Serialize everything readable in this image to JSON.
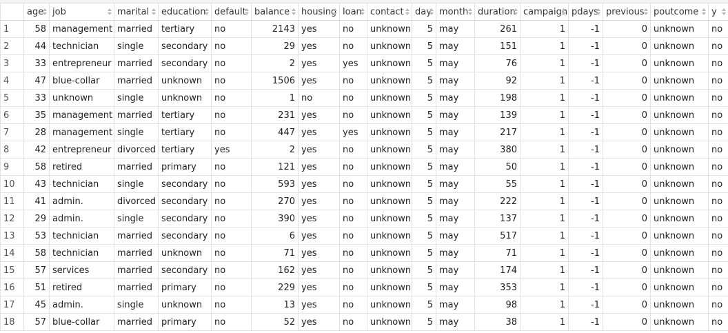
{
  "table": {
    "columns": [
      "age",
      "job",
      "marital",
      "education",
      "default",
      "balance",
      "housing",
      "loan",
      "contact",
      "day",
      "month",
      "duration",
      "campaign",
      "pdays",
      "previous",
      "poutcome",
      "y"
    ],
    "rows": [
      {
        "index": "1",
        "age": "58",
        "job": "management",
        "marital": "married",
        "education": "tertiary",
        "default": "no",
        "balance": "2143",
        "housing": "yes",
        "loan": "no",
        "contact": "unknown",
        "day": "5",
        "month": "may",
        "duration": "261",
        "campaign": "1",
        "pdays": "-1",
        "previous": "0",
        "poutcome": "unknown",
        "y": "no"
      },
      {
        "index": "2",
        "age": "44",
        "job": "technician",
        "marital": "single",
        "education": "secondary",
        "default": "no",
        "balance": "29",
        "housing": "yes",
        "loan": "no",
        "contact": "unknown",
        "day": "5",
        "month": "may",
        "duration": "151",
        "campaign": "1",
        "pdays": "-1",
        "previous": "0",
        "poutcome": "unknown",
        "y": "no"
      },
      {
        "index": "3",
        "age": "33",
        "job": "entrepreneur",
        "marital": "married",
        "education": "secondary",
        "default": "no",
        "balance": "2",
        "housing": "yes",
        "loan": "yes",
        "contact": "unknown",
        "day": "5",
        "month": "may",
        "duration": "76",
        "campaign": "1",
        "pdays": "-1",
        "previous": "0",
        "poutcome": "unknown",
        "y": "no"
      },
      {
        "index": "4",
        "age": "47",
        "job": "blue-collar",
        "marital": "married",
        "education": "unknown",
        "default": "no",
        "balance": "1506",
        "housing": "yes",
        "loan": "no",
        "contact": "unknown",
        "day": "5",
        "month": "may",
        "duration": "92",
        "campaign": "1",
        "pdays": "-1",
        "previous": "0",
        "poutcome": "unknown",
        "y": "no"
      },
      {
        "index": "5",
        "age": "33",
        "job": "unknown",
        "marital": "single",
        "education": "unknown",
        "default": "no",
        "balance": "1",
        "housing": "no",
        "loan": "no",
        "contact": "unknown",
        "day": "5",
        "month": "may",
        "duration": "198",
        "campaign": "1",
        "pdays": "-1",
        "previous": "0",
        "poutcome": "unknown",
        "y": "no"
      },
      {
        "index": "6",
        "age": "35",
        "job": "management",
        "marital": "married",
        "education": "tertiary",
        "default": "no",
        "balance": "231",
        "housing": "yes",
        "loan": "no",
        "contact": "unknown",
        "day": "5",
        "month": "may",
        "duration": "139",
        "campaign": "1",
        "pdays": "-1",
        "previous": "0",
        "poutcome": "unknown",
        "y": "no"
      },
      {
        "index": "7",
        "age": "28",
        "job": "management",
        "marital": "single",
        "education": "tertiary",
        "default": "no",
        "balance": "447",
        "housing": "yes",
        "loan": "yes",
        "contact": "unknown",
        "day": "5",
        "month": "may",
        "duration": "217",
        "campaign": "1",
        "pdays": "-1",
        "previous": "0",
        "poutcome": "unknown",
        "y": "no"
      },
      {
        "index": "8",
        "age": "42",
        "job": "entrepreneur",
        "marital": "divorced",
        "education": "tertiary",
        "default": "yes",
        "balance": "2",
        "housing": "yes",
        "loan": "no",
        "contact": "unknown",
        "day": "5",
        "month": "may",
        "duration": "380",
        "campaign": "1",
        "pdays": "-1",
        "previous": "0",
        "poutcome": "unknown",
        "y": "no"
      },
      {
        "index": "9",
        "age": "58",
        "job": "retired",
        "marital": "married",
        "education": "primary",
        "default": "no",
        "balance": "121",
        "housing": "yes",
        "loan": "no",
        "contact": "unknown",
        "day": "5",
        "month": "may",
        "duration": "50",
        "campaign": "1",
        "pdays": "-1",
        "previous": "0",
        "poutcome": "unknown",
        "y": "no"
      },
      {
        "index": "10",
        "age": "43",
        "job": "technician",
        "marital": "single",
        "education": "secondary",
        "default": "no",
        "balance": "593",
        "housing": "yes",
        "loan": "no",
        "contact": "unknown",
        "day": "5",
        "month": "may",
        "duration": "55",
        "campaign": "1",
        "pdays": "-1",
        "previous": "0",
        "poutcome": "unknown",
        "y": "no"
      },
      {
        "index": "11",
        "age": "41",
        "job": "admin.",
        "marital": "divorced",
        "education": "secondary",
        "default": "no",
        "balance": "270",
        "housing": "yes",
        "loan": "no",
        "contact": "unknown",
        "day": "5",
        "month": "may",
        "duration": "222",
        "campaign": "1",
        "pdays": "-1",
        "previous": "0",
        "poutcome": "unknown",
        "y": "no"
      },
      {
        "index": "12",
        "age": "29",
        "job": "admin.",
        "marital": "single",
        "education": "secondary",
        "default": "no",
        "balance": "390",
        "housing": "yes",
        "loan": "no",
        "contact": "unknown",
        "day": "5",
        "month": "may",
        "duration": "137",
        "campaign": "1",
        "pdays": "-1",
        "previous": "0",
        "poutcome": "unknown",
        "y": "no"
      },
      {
        "index": "13",
        "age": "53",
        "job": "technician",
        "marital": "married",
        "education": "secondary",
        "default": "no",
        "balance": "6",
        "housing": "yes",
        "loan": "no",
        "contact": "unknown",
        "day": "5",
        "month": "may",
        "duration": "517",
        "campaign": "1",
        "pdays": "-1",
        "previous": "0",
        "poutcome": "unknown",
        "y": "no"
      },
      {
        "index": "14",
        "age": "58",
        "job": "technician",
        "marital": "married",
        "education": "unknown",
        "default": "no",
        "balance": "71",
        "housing": "yes",
        "loan": "no",
        "contact": "unknown",
        "day": "5",
        "month": "may",
        "duration": "71",
        "campaign": "1",
        "pdays": "-1",
        "previous": "0",
        "poutcome": "unknown",
        "y": "no"
      },
      {
        "index": "15",
        "age": "57",
        "job": "services",
        "marital": "married",
        "education": "secondary",
        "default": "no",
        "balance": "162",
        "housing": "yes",
        "loan": "no",
        "contact": "unknown",
        "day": "5",
        "month": "may",
        "duration": "174",
        "campaign": "1",
        "pdays": "-1",
        "previous": "0",
        "poutcome": "unknown",
        "y": "no"
      },
      {
        "index": "16",
        "age": "51",
        "job": "retired",
        "marital": "married",
        "education": "primary",
        "default": "no",
        "balance": "229",
        "housing": "yes",
        "loan": "no",
        "contact": "unknown",
        "day": "5",
        "month": "may",
        "duration": "353",
        "campaign": "1",
        "pdays": "-1",
        "previous": "0",
        "poutcome": "unknown",
        "y": "no"
      },
      {
        "index": "17",
        "age": "45",
        "job": "admin.",
        "marital": "single",
        "education": "unknown",
        "default": "no",
        "balance": "13",
        "housing": "yes",
        "loan": "no",
        "contact": "unknown",
        "day": "5",
        "month": "may",
        "duration": "98",
        "campaign": "1",
        "pdays": "-1",
        "previous": "0",
        "poutcome": "unknown",
        "y": "no"
      },
      {
        "index": "18",
        "age": "57",
        "job": "blue-collar",
        "marital": "married",
        "education": "primary",
        "default": "no",
        "balance": "52",
        "housing": "yes",
        "loan": "no",
        "contact": "unknown",
        "day": "5",
        "month": "may",
        "duration": "38",
        "campaign": "1",
        "pdays": "-1",
        "previous": "0",
        "poutcome": "unknown",
        "y": "no"
      }
    ]
  }
}
